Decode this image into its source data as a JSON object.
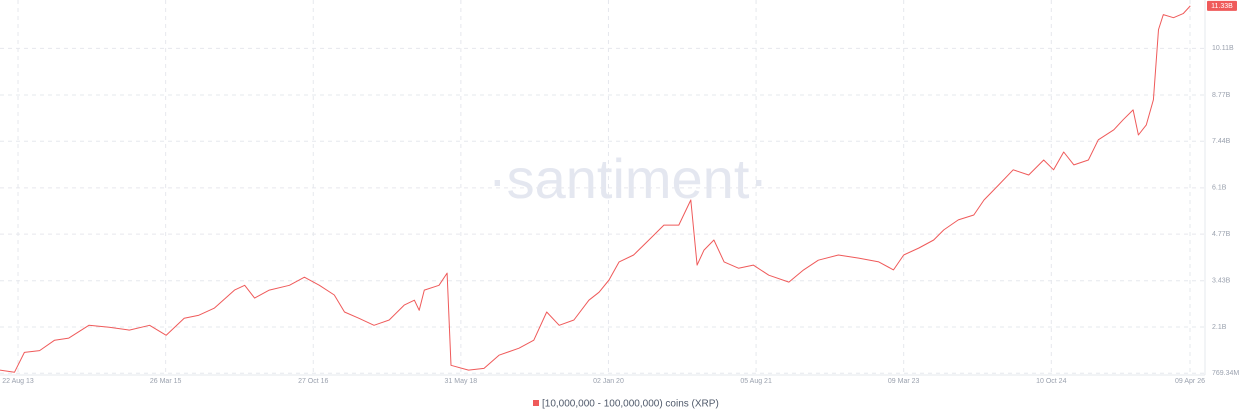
{
  "chart_data": {
    "type": "line",
    "watermark": "·santiment·",
    "x": [
      "2013-06-10",
      "2013-08-08",
      "2013-09-16",
      "2013-11-15",
      "2014-01-13",
      "2014-03-10",
      "2014-05-28",
      "2014-08-16",
      "2014-11-03",
      "2015-01-22",
      "2015-03-28",
      "2015-06-07",
      "2015-08-04",
      "2015-10-03",
      "2015-12-22",
      "2016-01-31",
      "2016-03-10",
      "2016-05-07",
      "2016-07-25",
      "2016-09-22",
      "2016-11-20",
      "2017-01-18",
      "2017-02-27",
      "2017-04-25",
      "2017-06-23",
      "2017-08-22",
      "2017-10-20",
      "2017-11-29",
      "2017-12-18",
      "2018-01-07",
      "2018-03-06",
      "2018-04-07",
      "2018-04-22",
      "2018-06-30",
      "2018-08-30",
      "2018-10-28",
      "2019-01-15",
      "2019-03-14",
      "2019-05-04",
      "2019-06-22",
      "2019-08-19",
      "2019-10-17",
      "2019-11-26",
      "2020-01-04",
      "2020-02-13",
      "2020-04-10",
      "2020-06-09",
      "2020-08-07",
      "2020-10-05",
      "2020-11-21",
      "2020-12-16",
      "2021-01-12",
      "2021-02-20",
      "2021-04-01",
      "2021-05-28",
      "2021-07-25",
      "2021-09-24",
      "2021-12-12",
      "2022-02-08",
      "2022-04-07",
      "2022-06-25",
      "2022-09-13",
      "2022-12-01",
      "2023-01-28",
      "2023-03-09",
      "2023-05-08",
      "2023-07-05",
      "2023-08-14",
      "2023-10-10",
      "2023-12-10",
      "2024-01-19",
      "2024-03-16",
      "2024-05-13",
      "2024-07-13",
      "2024-09-10",
      "2024-10-19",
      "2024-11-28",
      "2025-01-07",
      "2025-03-05",
      "2025-04-13",
      "2025-06-13",
      "2025-07-20",
      "2025-08-28",
      "2025-09-18",
      "2025-10-19",
      "2025-11-16",
      "2025-12-06",
      "2025-12-25",
      "2026-02-03",
      "2026-03-13",
      "2026-04-10"
    ],
    "series": [
      {
        "name": "[10,000,000 - 100,000,000) coins (XRP)",
        "color": "#ef5a5a",
        "values": [
          0.86,
          0.8,
          1.37,
          1.42,
          1.72,
          1.78,
          2.15,
          2.09,
          2.01,
          2.15,
          1.86,
          2.35,
          2.44,
          2.64,
          3.16,
          3.3,
          2.93,
          3.16,
          3.3,
          3.53,
          3.3,
          3.02,
          2.53,
          2.35,
          2.15,
          2.3,
          2.73,
          2.87,
          2.58,
          3.16,
          3.3,
          3.65,
          1.0,
          0.86,
          0.91,
          1.29,
          1.49,
          1.72,
          2.53,
          2.15,
          2.3,
          2.87,
          3.1,
          3.45,
          3.97,
          4.17,
          4.6,
          5.03,
          5.03,
          5.75,
          3.88,
          4.31,
          4.6,
          3.97,
          3.79,
          3.88,
          3.59,
          3.39,
          3.74,
          4.02,
          4.17,
          4.08,
          3.97,
          3.74,
          4.17,
          4.37,
          4.6,
          4.89,
          5.18,
          5.32,
          5.75,
          6.18,
          6.62,
          6.47,
          6.9,
          6.62,
          7.13,
          6.76,
          6.9,
          7.48,
          7.77,
          8.06,
          8.34,
          7.62,
          7.91,
          8.63,
          10.65,
          11.08,
          10.99,
          11.11,
          11.33
        ]
      }
    ],
    "current_value": {
      "value": 11.33,
      "label": "11.33B"
    },
    "xlim": [
      "2013-06-12",
      "2026-06-07"
    ],
    "xticks": [
      {
        "value": "2013-08-22",
        "label": "22 Aug 13"
      },
      {
        "value": "2015-03-26",
        "label": "26 Mar 15"
      },
      {
        "value": "2016-10-27",
        "label": "27 Oct 16"
      },
      {
        "value": "2018-05-31",
        "label": "31 May 18"
      },
      {
        "value": "2020-01-02",
        "label": "02 Jan 20"
      },
      {
        "value": "2021-08-05",
        "label": "05 Aug 21"
      },
      {
        "value": "2023-03-09",
        "label": "09 Mar 23"
      },
      {
        "value": "2024-10-10",
        "label": "10 Oct 24"
      },
      {
        "value": "2026-04-09",
        "label": "09 Apr 26"
      }
    ],
    "ylim": [
      0.72,
      11.5
    ],
    "yticks": [
      {
        "value": 0.76934,
        "label": "769.34M"
      },
      {
        "value": 2.1,
        "label": "2.1B"
      },
      {
        "value": 3.43,
        "label": "3.43B"
      },
      {
        "value": 4.77,
        "label": "4.77B"
      },
      {
        "value": 6.1,
        "label": "6.1B"
      },
      {
        "value": 7.44,
        "label": "7.44B"
      },
      {
        "value": 8.77,
        "label": "8.77B"
      },
      {
        "value": 10.11,
        "label": "10.11B"
      }
    ],
    "grid": true
  }
}
